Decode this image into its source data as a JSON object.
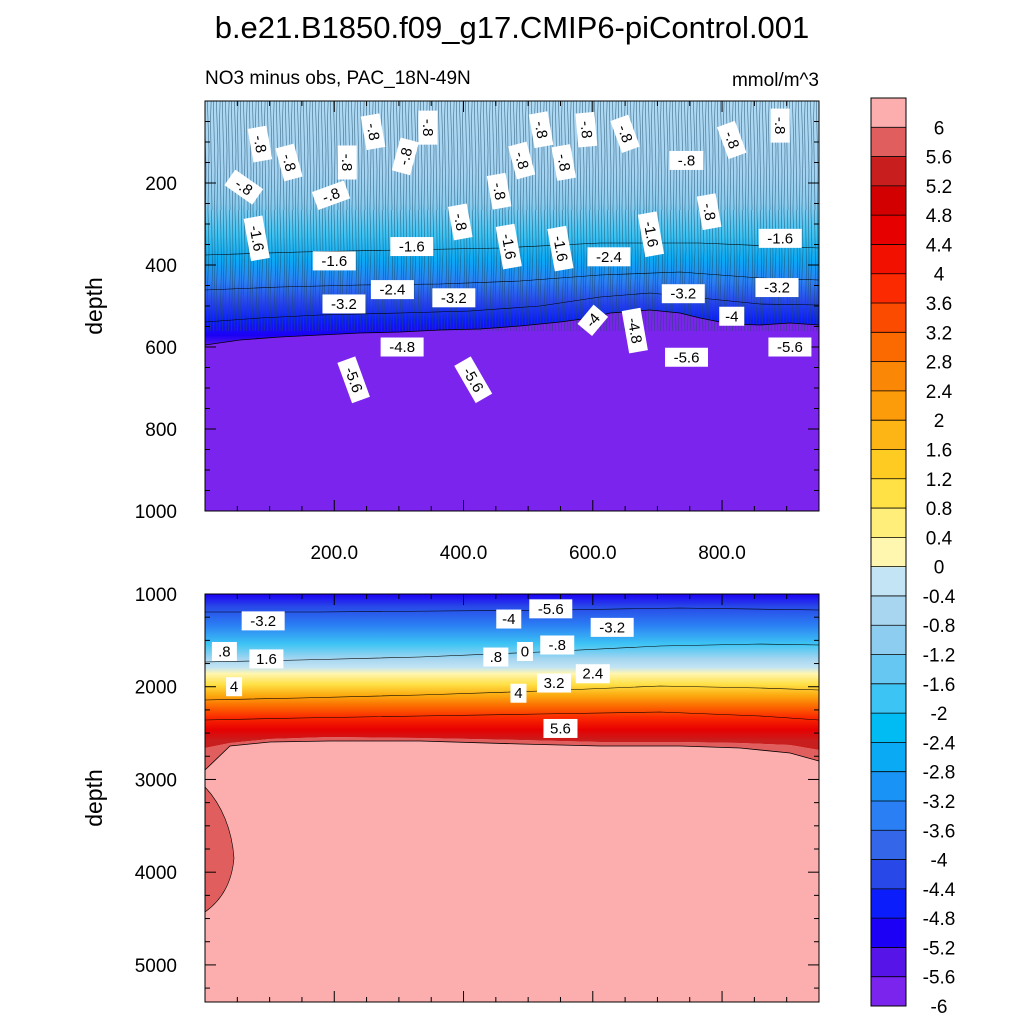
{
  "chart_data": {
    "type": "contour",
    "title": "b.e21.B1850.f09_g17.CMIP6-piControl.001",
    "subtitle_left": "NO3 minus obs, PAC_18N-49N",
    "units": "mmol/m^3",
    "colorbar": {
      "colors": [
        "#7b24ed",
        "#5614e8",
        "#1b00f5",
        "#0a1dfa",
        "#2848e8",
        "#3366e8",
        "#2b7ff4",
        "#1a93f7",
        "#0aaaf5",
        "#00bcf2",
        "#3cc4f4",
        "#66c8f2",
        "#8ccdf0",
        "#a8d6f0",
        "#c2e4f4",
        "#fff6b0",
        "#ffee7a",
        "#ffe045",
        "#fdcb22",
        "#fdb515",
        "#fc9c0a",
        "#fb8706",
        "#fb6a00",
        "#fb4b00",
        "#fb2a00",
        "#f21000",
        "#e60000",
        "#d20000",
        "#c81e1e",
        "#e15e5e",
        "#fcaeae"
      ],
      "labels": [
        "6",
        "5.6",
        "5.2",
        "4.8",
        "4.4",
        "4",
        "3.6",
        "3.2",
        "2.8",
        "2.4",
        "2",
        "1.6",
        "1.2",
        "0.8",
        "0.4",
        "0",
        "-0.4",
        "-0.8",
        "-1.2",
        "-1.6",
        "-2",
        "-2.4",
        "-2.8",
        "-3.2",
        "-3.6",
        "-4",
        "-4.4",
        "-4.8",
        "-5.2",
        "-5.6",
        "-6"
      ]
    },
    "panels": [
      {
        "name": "upper",
        "ylabel": "depth",
        "ylim": [
          0,
          1000
        ],
        "xlim": [
          0,
          950
        ],
        "yticks": [
          "200",
          "400",
          "600",
          "800",
          "1000"
        ],
        "ytick_values": [
          200,
          400,
          600,
          800,
          1000
        ],
        "xticks": [
          "200.0",
          "400.0",
          "600.0",
          "800.0"
        ],
        "xtick_values": [
          200,
          400,
          600,
          800
        ],
        "contour_labels": [
          {
            "t": "-.8",
            "x": 85,
            "y": 105,
            "r": 80
          },
          {
            "t": "-.8",
            "x": 260,
            "y": 75,
            "r": 80
          },
          {
            "t": "-.8",
            "x": 345,
            "y": 65,
            "r": 90
          },
          {
            "t": "-.8",
            "x": 520,
            "y": 70,
            "r": 80
          },
          {
            "t": "-.8",
            "x": 590,
            "y": 70,
            "r": 85
          },
          {
            "t": "-.8",
            "x": 650,
            "y": 80,
            "r": 70
          },
          {
            "t": "-.8",
            "x": 815,
            "y": 95,
            "r": 70
          },
          {
            "t": "-.8",
            "x": 890,
            "y": 60,
            "r": 90
          },
          {
            "t": "-.8",
            "x": 130,
            "y": 150,
            "r": 75
          },
          {
            "t": "-.8",
            "x": 220,
            "y": 150,
            "r": 90
          },
          {
            "t": "-.8",
            "x": 310,
            "y": 135,
            "r": -75
          },
          {
            "t": "-.8",
            "x": 490,
            "y": 145,
            "r": 75
          },
          {
            "t": "-.8",
            "x": 555,
            "y": 150,
            "r": 80
          },
          {
            "t": "-.8",
            "x": 745,
            "y": 145,
            "r": 0
          },
          {
            "t": "-.8",
            "x": 60,
            "y": 210,
            "r": 35
          },
          {
            "t": "-.8",
            "x": 195,
            "y": 230,
            "r": -20
          },
          {
            "t": "-.8",
            "x": 455,
            "y": 220,
            "r": 80
          },
          {
            "t": "-.8",
            "x": 395,
            "y": 295,
            "r": 80
          },
          {
            "t": "-.8",
            "x": 780,
            "y": 270,
            "r": 80
          },
          {
            "t": "-1.6",
            "x": 80,
            "y": 335,
            "r": 80
          },
          {
            "t": "-1.6",
            "x": 200,
            "y": 390,
            "r": 0
          },
          {
            "t": "-1.6",
            "x": 320,
            "y": 355,
            "r": 0
          },
          {
            "t": "-1.6",
            "x": 470,
            "y": 355,
            "r": 80
          },
          {
            "t": "-1.6",
            "x": 550,
            "y": 360,
            "r": 80
          },
          {
            "t": "-1.6",
            "x": 690,
            "y": 325,
            "r": 80
          },
          {
            "t": "-1.6",
            "x": 890,
            "y": 335,
            "r": 0
          },
          {
            "t": "-2.4",
            "x": 290,
            "y": 460,
            "r": 0
          },
          {
            "t": "-2.4",
            "x": 625,
            "y": 380,
            "r": 0
          },
          {
            "t": "-3.2",
            "x": 215,
            "y": 495,
            "r": 0
          },
          {
            "t": "-3.2",
            "x": 385,
            "y": 480,
            "r": 0
          },
          {
            "t": "-3.2",
            "x": 740,
            "y": 470,
            "r": 0
          },
          {
            "t": "-3.2",
            "x": 885,
            "y": 455,
            "r": 0
          },
          {
            "t": "-4",
            "x": 600,
            "y": 535,
            "r": -50
          },
          {
            "t": "-4",
            "x": 815,
            "y": 525,
            "r": 0
          },
          {
            "t": "-4.8",
            "x": 665,
            "y": 560,
            "r": 80
          },
          {
            "t": "-4.8",
            "x": 305,
            "y": 600,
            "r": 0
          },
          {
            "t": "-5.6",
            "x": 230,
            "y": 680,
            "r": 70
          },
          {
            "t": "-5.6",
            "x": 415,
            "y": 680,
            "r": 60
          },
          {
            "t": "-5.6",
            "x": 745,
            "y": 625,
            "r": 0
          },
          {
            "t": "-5.6",
            "x": 905,
            "y": 600,
            "r": 0
          }
        ]
      },
      {
        "name": "lower",
        "ylabel": "depth",
        "ylim": [
          1000,
          5400
        ],
        "xlim": [
          0,
          950
        ],
        "yticks": [
          "1000",
          "2000",
          "3000",
          "4000",
          "5000"
        ],
        "ytick_values": [
          1000,
          2000,
          3000,
          4000,
          5000
        ],
        "contour_labels": [
          {
            "t": "-3.2",
            "x": 90,
            "y": 1290,
            "r": 0
          },
          {
            "t": "-4",
            "x": 470,
            "y": 1270,
            "r": 0
          },
          {
            "t": "-5.6",
            "x": 535,
            "y": 1160,
            "r": 0
          },
          {
            "t": "-3.2",
            "x": 630,
            "y": 1360,
            "r": 0
          },
          {
            "t": ".8",
            "x": 30,
            "y": 1620,
            "r": 0
          },
          {
            "t": "1.6",
            "x": 95,
            "y": 1700,
            "r": 0
          },
          {
            "t": ".8",
            "x": 450,
            "y": 1680,
            "r": 0
          },
          {
            "t": "0",
            "x": 495,
            "y": 1620,
            "r": 0
          },
          {
            "t": "-.8",
            "x": 545,
            "y": 1550,
            "r": 0
          },
          {
            "t": "4",
            "x": 45,
            "y": 2000,
            "r": 0
          },
          {
            "t": "4",
            "x": 485,
            "y": 2070,
            "r": 0
          },
          {
            "t": "3.2",
            "x": 540,
            "y": 1960,
            "r": 0
          },
          {
            "t": "2.4",
            "x": 600,
            "y": 1860,
            "r": 0
          },
          {
            "t": "5.6",
            "x": 550,
            "y": 2450,
            "r": 0
          }
        ]
      }
    ]
  }
}
